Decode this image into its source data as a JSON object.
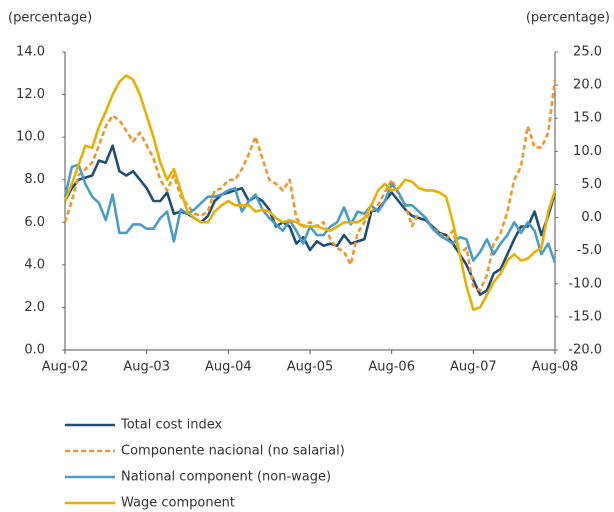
{
  "chart_data": {
    "type": "line",
    "y_label": "(percentage)",
    "y2_label": "(percentage)",
    "categories": [
      "Aug-02",
      null,
      null,
      null,
      null,
      null,
      null,
      null,
      null,
      null,
      null,
      null,
      "Aug-03",
      null,
      null,
      null,
      null,
      null,
      null,
      null,
      null,
      null,
      null,
      null,
      "Aug-04",
      null,
      null,
      null,
      null,
      null,
      null,
      null,
      null,
      null,
      null,
      null,
      "Aug-05",
      null,
      null,
      null,
      null,
      null,
      null,
      null,
      null,
      null,
      null,
      null,
      "Aug-06",
      null,
      null,
      null,
      null,
      null,
      null,
      null,
      null,
      null,
      null,
      null,
      "Aug-07",
      null,
      null,
      null,
      null,
      null,
      null,
      null,
      null,
      null,
      null,
      null,
      "Aug-08"
    ],
    "ylim": [
      0,
      14
    ],
    "yticks": [
      {
        "value": 0,
        "label": "0.0"
      },
      {
        "value": 2,
        "label": "2.0"
      },
      {
        "value": 4,
        "label": "4.0"
      },
      {
        "value": 6,
        "label": "6.0"
      },
      {
        "value": 8,
        "label": "8.0"
      },
      {
        "value": 10,
        "label": "10.0"
      },
      {
        "value": 12,
        "label": "12.0"
      },
      {
        "value": 14,
        "label": "14.0"
      }
    ],
    "y2lim": [
      -20,
      25
    ],
    "y2ticks": [
      {
        "value": -20,
        "label": "-20.0"
      },
      {
        "value": -15,
        "label": "-15.0"
      },
      {
        "value": -10,
        "label": "-10.0"
      },
      {
        "value": -5,
        "label": "-5.0"
      },
      {
        "value": 0,
        "label": "0.0"
      },
      {
        "value": 5,
        "label": "5.0"
      },
      {
        "value": 10,
        "label": "10.0"
      },
      {
        "value": 15,
        "label": "15.0"
      },
      {
        "value": 20,
        "label": "20.0"
      },
      {
        "value": 25,
        "label": "25.0"
      }
    ],
    "series": [
      {
        "name": "Total cost index",
        "color": "#1f4e79",
        "dash": false,
        "values": [
          7.0,
          7.6,
          8.0,
          8.1,
          8.2,
          8.9,
          8.8,
          9.6,
          8.4,
          8.2,
          8.4,
          8.0,
          7.6,
          7.0,
          7.0,
          7.4,
          6.4,
          6.5,
          6.4,
          6.2,
          6.0,
          6.3,
          7.0,
          7.3,
          7.4,
          7.5,
          7.6,
          7.0,
          7.2,
          7.0,
          6.6,
          5.8,
          6.0,
          5.8,
          5.0,
          5.3,
          4.7,
          5.1,
          4.9,
          5.0,
          4.9,
          5.4,
          5.0,
          5.1,
          5.2,
          6.5,
          6.6,
          7.0,
          7.4,
          7.0,
          6.6,
          6.3,
          6.2,
          6.1,
          5.8,
          5.5,
          5.4,
          5.0,
          4.5,
          4.0,
          3.3,
          2.6,
          2.8,
          3.6,
          3.8,
          4.5,
          5.2,
          5.8,
          5.8,
          6.5,
          5.4,
          6.3,
          7.4
        ]
      },
      {
        "name": "Componente nacional (no salarial)",
        "color": "#f0962d",
        "dash": true,
        "axis": "y2",
        "values": [
          -0.7,
          2.5,
          6.4,
          7.3,
          8.3,
          10.9,
          13.8,
          15.4,
          14.7,
          13.1,
          11.5,
          12.8,
          10.9,
          8.9,
          5.7,
          4.1,
          6.4,
          3.2,
          1.9,
          0.6,
          0.3,
          0.9,
          4.1,
          4.4,
          5.7,
          5.7,
          7.3,
          9.6,
          12.2,
          8.9,
          5.7,
          5.1,
          4.1,
          5.7,
          -0.1,
          -1.3,
          -0.7,
          -1.3,
          -0.7,
          -3.3,
          -4.6,
          -5.2,
          -7.1,
          -2.3,
          -0.7,
          0.9,
          1.9,
          3.8,
          5.7,
          3.5,
          1.9,
          -1.3,
          0.9,
          -0.1,
          -1.7,
          -2.3,
          -3.3,
          -2.0,
          -5.5,
          -4.6,
          -10.4,
          -11.0,
          -8.7,
          -3.9,
          -2.3,
          0.9,
          5.7,
          7.7,
          13.8,
          10.6,
          10.6,
          12.8,
          20.8
        ]
      },
      {
        "name": "National component (non-wage)",
        "color": "#4a9cc9",
        "dash": false,
        "values": [
          7.2,
          8.6,
          8.7,
          7.8,
          7.2,
          6.9,
          6.1,
          7.3,
          5.5,
          5.5,
          5.9,
          5.9,
          5.7,
          5.7,
          6.2,
          6.5,
          5.1,
          6.6,
          6.4,
          6.6,
          6.9,
          7.2,
          7.2,
          7.3,
          7.5,
          7.6,
          6.5,
          7.0,
          7.3,
          6.6,
          6.2,
          5.9,
          5.6,
          6.1,
          5.6,
          5.0,
          5.8,
          5.4,
          5.4,
          5.8,
          6.0,
          6.7,
          5.9,
          6.5,
          6.4,
          6.8,
          6.5,
          7.0,
          7.8,
          7.4,
          6.8,
          6.8,
          6.5,
          6.2,
          5.7,
          5.4,
          5.2,
          5.0,
          5.3,
          5.2,
          4.2,
          4.6,
          5.2,
          4.5,
          5.0,
          5.4,
          6.0,
          5.5,
          6.0,
          5.6,
          4.5,
          5.0,
          4.1
        ]
      },
      {
        "name": "Wage component",
        "color": "#e8b000",
        "dash": false,
        "values": [
          7.0,
          7.8,
          8.7,
          9.6,
          9.5,
          10.5,
          11.2,
          12.0,
          12.6,
          12.9,
          12.7,
          12.0,
          11.0,
          10.0,
          8.8,
          8.0,
          8.5,
          7.5,
          6.5,
          6.2,
          6.0,
          6.0,
          6.5,
          6.8,
          7.0,
          6.8,
          6.8,
          6.8,
          6.5,
          6.6,
          6.5,
          6.2,
          6.0,
          6.1,
          6.0,
          5.8,
          5.8,
          5.8,
          5.7,
          5.6,
          5.8,
          6.0,
          6.0,
          6.0,
          6.2,
          6.8,
          7.5,
          7.8,
          7.5,
          7.6,
          8.0,
          7.9,
          7.6,
          7.5,
          7.5,
          7.4,
          7.2,
          6.0,
          4.5,
          3.0,
          1.9,
          2.0,
          2.6,
          3.2,
          3.6,
          4.2,
          4.5,
          4.2,
          4.3,
          4.6,
          4.8,
          6.5,
          7.5
        ]
      }
    ]
  }
}
